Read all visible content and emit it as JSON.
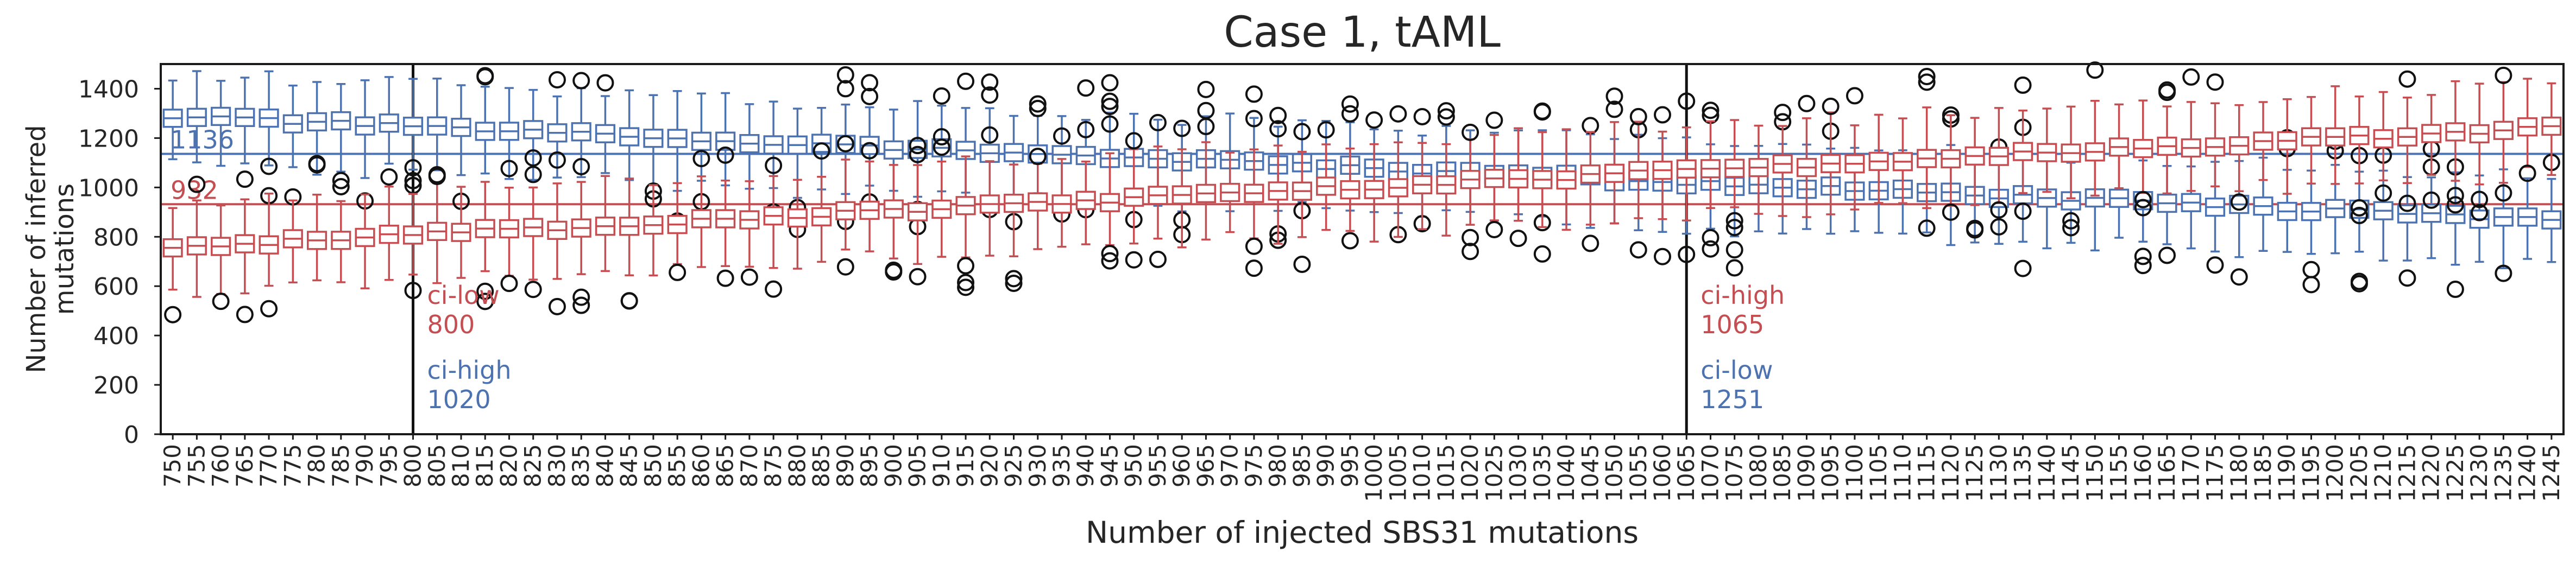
{
  "chart_data": {
    "type": "boxplot",
    "title": "Case 1, tAML",
    "xlabel": "Number of injected SBS31 mutations",
    "ylabel_lines": [
      "Number of inferred",
      "mutations"
    ],
    "x_start": 750,
    "x_step": 5,
    "x_count": 100,
    "ylim": [
      0,
      1500
    ],
    "yticks": [
      0,
      200,
      400,
      600,
      800,
      1000,
      1200,
      1400
    ],
    "colors": {
      "blue": "#4c72b0",
      "red": "#c44e52",
      "black": "#111111"
    },
    "hlines": [
      {
        "value": 1136,
        "label": "1136",
        "color": "blue"
      },
      {
        "value": 932,
        "label": "932",
        "color": "red"
      }
    ],
    "vlines": [
      800,
      1065
    ],
    "annotations": [
      {
        "x": 800,
        "label": "ci-low",
        "value": "800",
        "color": "red",
        "row": "upper"
      },
      {
        "x": 800,
        "label": "ci-high",
        "value": "1020",
        "color": "blue",
        "row": "lower"
      },
      {
        "x": 1065,
        "label": "ci-high",
        "value": "1065",
        "color": "red",
        "row": "upper"
      },
      {
        "x": 1065,
        "label": "ci-low",
        "value": "1251",
        "color": "blue",
        "row": "lower"
      }
    ],
    "series": [
      {
        "color": "blue",
        "median_start": 1288,
        "median_end": 868,
        "iqr_half": 35,
        "whisker_lo": 150,
        "whisker_hi": 135
      },
      {
        "color": "red",
        "median_start": 758,
        "median_end": 1243,
        "iqr_half": 35,
        "whisker_lo": 150,
        "whisker_hi": 145
      }
    ]
  }
}
